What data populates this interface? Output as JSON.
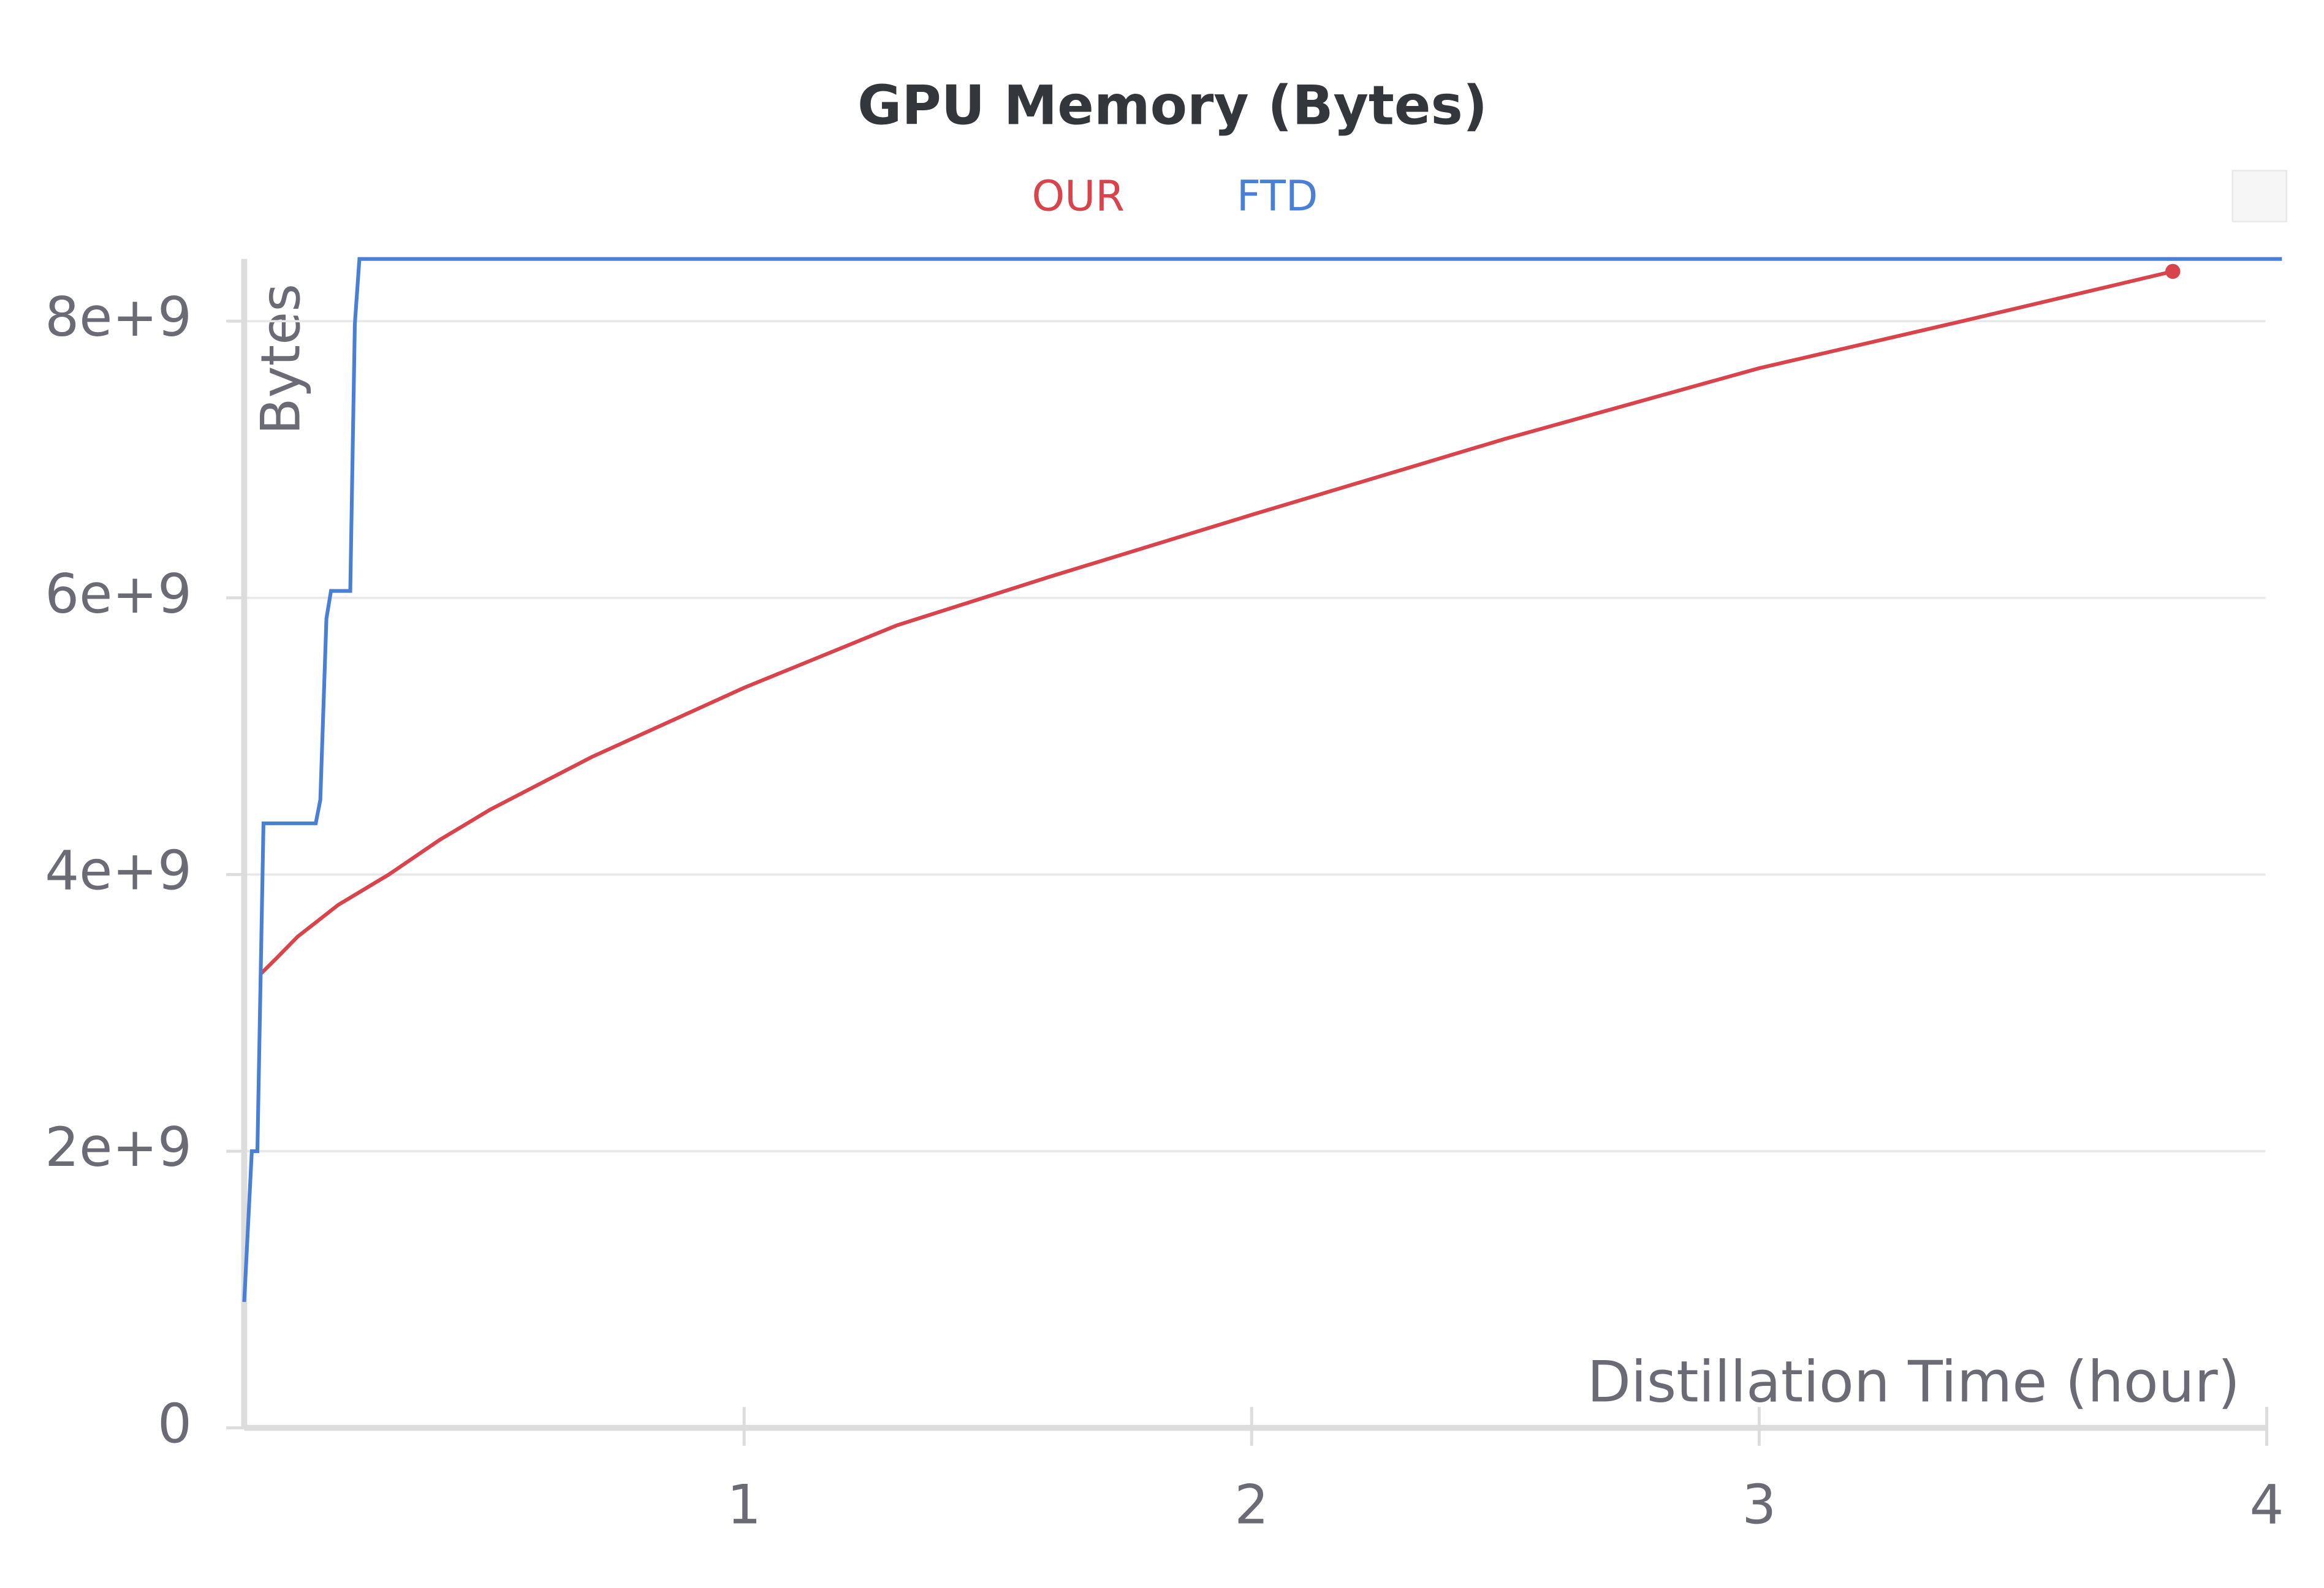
{
  "chart_data": {
    "type": "line",
    "title": "GPU Memory (Bytes)",
    "x_label": "Distillation Time (hour)",
    "y_label": "Bytes",
    "xlim": [
      0.015,
      4.03
    ],
    "xticks": [
      1,
      2,
      3,
      4
    ],
    "ylim": [
      0,
      8450000000
    ],
    "yticks": [
      0,
      {
        "value": 2000000000,
        "label": "2e+9"
      },
      {
        "value": 4000000000,
        "label": "4e+9"
      },
      {
        "value": 6000000000,
        "label": "6e+9"
      },
      {
        "value": 8000000000,
        "label": "8e+9"
      }
    ],
    "grid": true,
    "legend": "top",
    "series": [
      {
        "name": "OUR",
        "color": "#d9434b",
        "x": [
          0.047,
          0.08,
          0.12,
          0.2,
          0.3,
          0.4,
          0.5,
          0.7,
          1.0,
          1.3,
          1.6,
          2.0,
          2.5,
          3.0,
          3.4,
          3.815
        ],
        "values": [
          3280000000,
          3400000000,
          3550000000,
          3780000000,
          4000000000,
          4250000000,
          4470000000,
          4850000000,
          5350000000,
          5800000000,
          6150000000,
          6600000000,
          7150000000,
          7660000000,
          8000000000,
          8360000000
        ]
      },
      {
        "name": "FTD",
        "color": "#4a7fd6",
        "x": [
          0.015,
          0.03,
          0.041,
          0.053,
          0.156,
          0.165,
          0.177,
          0.186,
          0.224,
          0.233,
          0.242,
          4.03
        ],
        "values": [
          910000000,
          2000000000,
          2000000000,
          4370000000,
          4370000000,
          4540000000,
          5850000000,
          6050000000,
          6050000000,
          7980000000,
          8450000000,
          8450000000
        ]
      }
    ]
  }
}
